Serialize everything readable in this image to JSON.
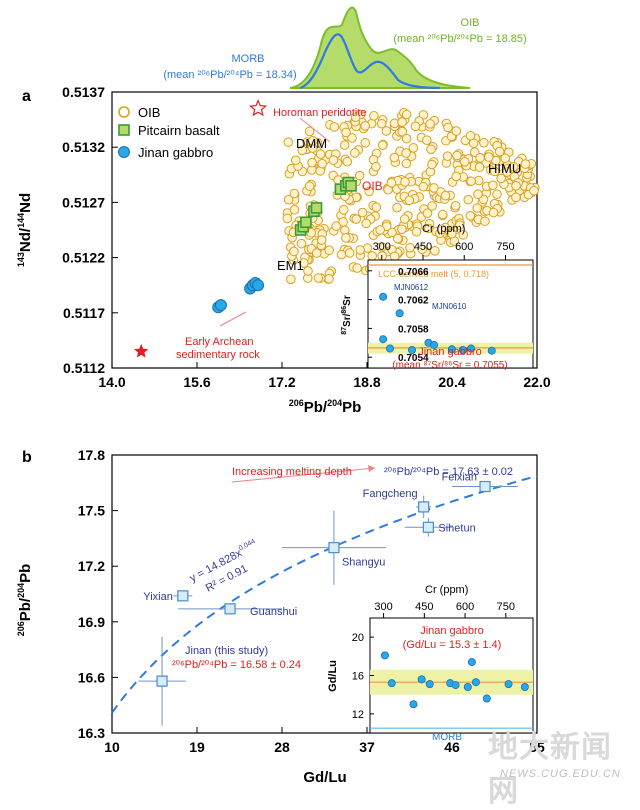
{
  "chart_data": [
    {
      "type": "scatter",
      "panel_label": "a",
      "xlabel_main": "206",
      "xlabel_sub": "Pb/",
      "xlabel_main2": "204",
      "xlabel_sub2": "Pb",
      "ylabel_a": "143",
      "ylabel_b": "Nd/",
      "ylabel_c": "144",
      "ylabel_d": "Nd",
      "xlim": [
        14.0,
        22.0
      ],
      "ylim": [
        0.5112,
        0.5137
      ],
      "xticks": [
        "14.0",
        "15.6",
        "17.2",
        "18.8",
        "20.4",
        "22.0"
      ],
      "yticks": [
        "0.5112",
        "0.5117",
        "0.5122",
        "0.5127",
        "0.5132",
        "0.5137"
      ],
      "legend": [
        "OIB",
        "Pitcairn basalt",
        "Jinan gabbro"
      ],
      "colors": {
        "oib": "#d9a11f",
        "pitcairn": "#3a9a3a",
        "jinan": "#2aa7e6",
        "red": "#e02020",
        "morb_curve": "#2f7be0",
        "oib_curve": "#7cbd2a"
      },
      "annotations": {
        "horoman": "Horoman peridotite",
        "dmm": "DMM",
        "himu": "HIMU",
        "oib_label": "OIB",
        "em1": "EM1",
        "archean1": "Early Archean",
        "archean2": "sedimentary rock"
      },
      "morb_label": "MORB",
      "morb_mean": "(mean ²⁰⁶Pb/²⁰⁴Pb = 18.34)",
      "oib_top_label": "OIB",
      "oib_mean": "(mean ²⁰⁶Pb/²⁰⁴Pb = 18.85)",
      "pitcairn_points": [
        [
          17.55,
          0.51245
        ],
        [
          17.6,
          0.51248
        ],
        [
          17.65,
          0.51252
        ],
        [
          17.8,
          0.51262
        ],
        [
          17.85,
          0.51265
        ],
        [
          18.3,
          0.51282
        ],
        [
          18.4,
          0.51285
        ],
        [
          18.45,
          0.51288
        ],
        [
          18.5,
          0.51285
        ]
      ],
      "jinan_points": [
        [
          16.0,
          0.51175
        ],
        [
          16.05,
          0.51177
        ],
        [
          16.6,
          0.51192
        ],
        [
          16.65,
          0.51195
        ],
        [
          16.7,
          0.51197
        ],
        [
          16.75,
          0.51195
        ]
      ],
      "endmembers": {
        "horoman": [
          16.75,
          0.51355
        ],
        "archean": [
          14.55,
          0.51135
        ]
      },
      "inset": {
        "xlabel": "Cr (ppm)",
        "xticks": [
          "300",
          "450",
          "600",
          "750"
        ],
        "xlim": [
          250,
          850
        ],
        "yticks": [
          "0.7066",
          "0.7062",
          "0.7058",
          "0.7054"
        ],
        "ylim": [
          0.70525,
          0.70675
        ],
        "ylabel_a": "87",
        "ylabel_b": "Sr/",
        "ylabel_c": "86",
        "ylabel_d": "Sr",
        "lcc_label": "LCC-derived melt (5, 0.718)",
        "labels": {
          "mjn0612": "MJN0612",
          "mjn0610": "MJN0610"
        },
        "caption1": "Jinan gabbro",
        "caption2": "(mean ⁸⁷Sr/⁸⁶Sr = 0.7055)",
        "band": [
          0.70545,
          0.7056
        ],
        "mean": 0.70553,
        "points": [
          [
            305,
            0.70624
          ],
          [
            365,
            0.70601
          ],
          [
            305,
            0.70565
          ],
          [
            330,
            0.70552
          ],
          [
            410,
            0.7055
          ],
          [
            470,
            0.7056
          ],
          [
            490,
            0.70557
          ],
          [
            555,
            0.70551
          ],
          [
            595,
            0.7055
          ],
          [
            625,
            0.70552
          ],
          [
            700,
            0.70549
          ]
        ]
      }
    },
    {
      "type": "scatter",
      "panel_label": "b",
      "xlabel": "Gd/Lu",
      "ylabel_a": "206",
      "ylabel_b": "Pb/",
      "ylabel_c": "204",
      "ylabel_d": "Pb",
      "xlim": [
        10,
        55
      ],
      "ylim": [
        16.3,
        17.8
      ],
      "xticks": [
        "10",
        "19",
        "28",
        "37",
        "46",
        "55"
      ],
      "yticks": [
        "16.3",
        "16.6",
        "16.9",
        "17.2",
        "17.5",
        "17.8"
      ],
      "fit_eq": "y = 14.828x",
      "fit_exp": "0.044",
      "fit_r2": "R² = 0.91",
      "depth_label": "Increasing melting depth",
      "depth_value": "²⁰⁶Pb/²⁰⁴Pb = 17.63 ± 0.02",
      "jinan_label1": "Jinan (this study)",
      "jinan_label2": "²⁰⁶Pb/²⁰⁴Pb = 16.58 ± 0.24",
      "points": [
        {
          "name": "Yixian",
          "x": 17.5,
          "y": 17.04,
          "xerr": 1.0,
          "yerr": 0.0
        },
        {
          "name": "Guanshui",
          "x": 22.5,
          "y": 16.97,
          "xerr": 5.5,
          "yerr": 0.03
        },
        {
          "name": "Shangyu",
          "x": 33.5,
          "y": 17.3,
          "xerr": 5.5,
          "yerr": 0.2
        },
        {
          "name": "Fangcheng",
          "x": 43.0,
          "y": 17.52,
          "xerr": 0.8,
          "yerr": 0.06
        },
        {
          "name": "Sihetun",
          "x": 43.5,
          "y": 17.41,
          "xerr": 2.5,
          "yerr": 0.05
        },
        {
          "name": "Feixian",
          "x": 49.5,
          "y": 17.63,
          "xerr": 3.5,
          "yerr": 0.02
        },
        {
          "name": "",
          "x": 15.3,
          "y": 16.58,
          "xerr": 2.5,
          "yerr": 0.24
        }
      ],
      "inset": {
        "xlabel": "Cr (ppm)",
        "xticks": [
          "300",
          "450",
          "600",
          "750"
        ],
        "xlim": [
          250,
          850
        ],
        "yticks": [
          "20",
          "16",
          "12"
        ],
        "ylim": [
          10,
          22
        ],
        "ylabel": "Gd/Lu",
        "caption1": "Jinan gabbro",
        "caption2": "(Gd/Lu = 15.3 ± 1.4)",
        "morb": "MORB",
        "band": [
          14.0,
          16.6
        ],
        "mean": 15.3,
        "morb_y": 10.5,
        "points": [
          [
            305,
            18.1
          ],
          [
            330,
            15.2
          ],
          [
            410,
            13.0
          ],
          [
            440,
            15.6
          ],
          [
            470,
            15.1
          ],
          [
            545,
            15.2
          ],
          [
            565,
            15.0
          ],
          [
            610,
            14.8
          ],
          [
            625,
            17.4
          ],
          [
            640,
            15.3
          ],
          [
            680,
            13.6
          ],
          [
            760,
            15.1
          ],
          [
            820,
            14.8
          ]
        ]
      }
    }
  ],
  "watermark": {
    "cn": "地大新闻网",
    "url": "NEWS.CUG.EDU.CN"
  }
}
